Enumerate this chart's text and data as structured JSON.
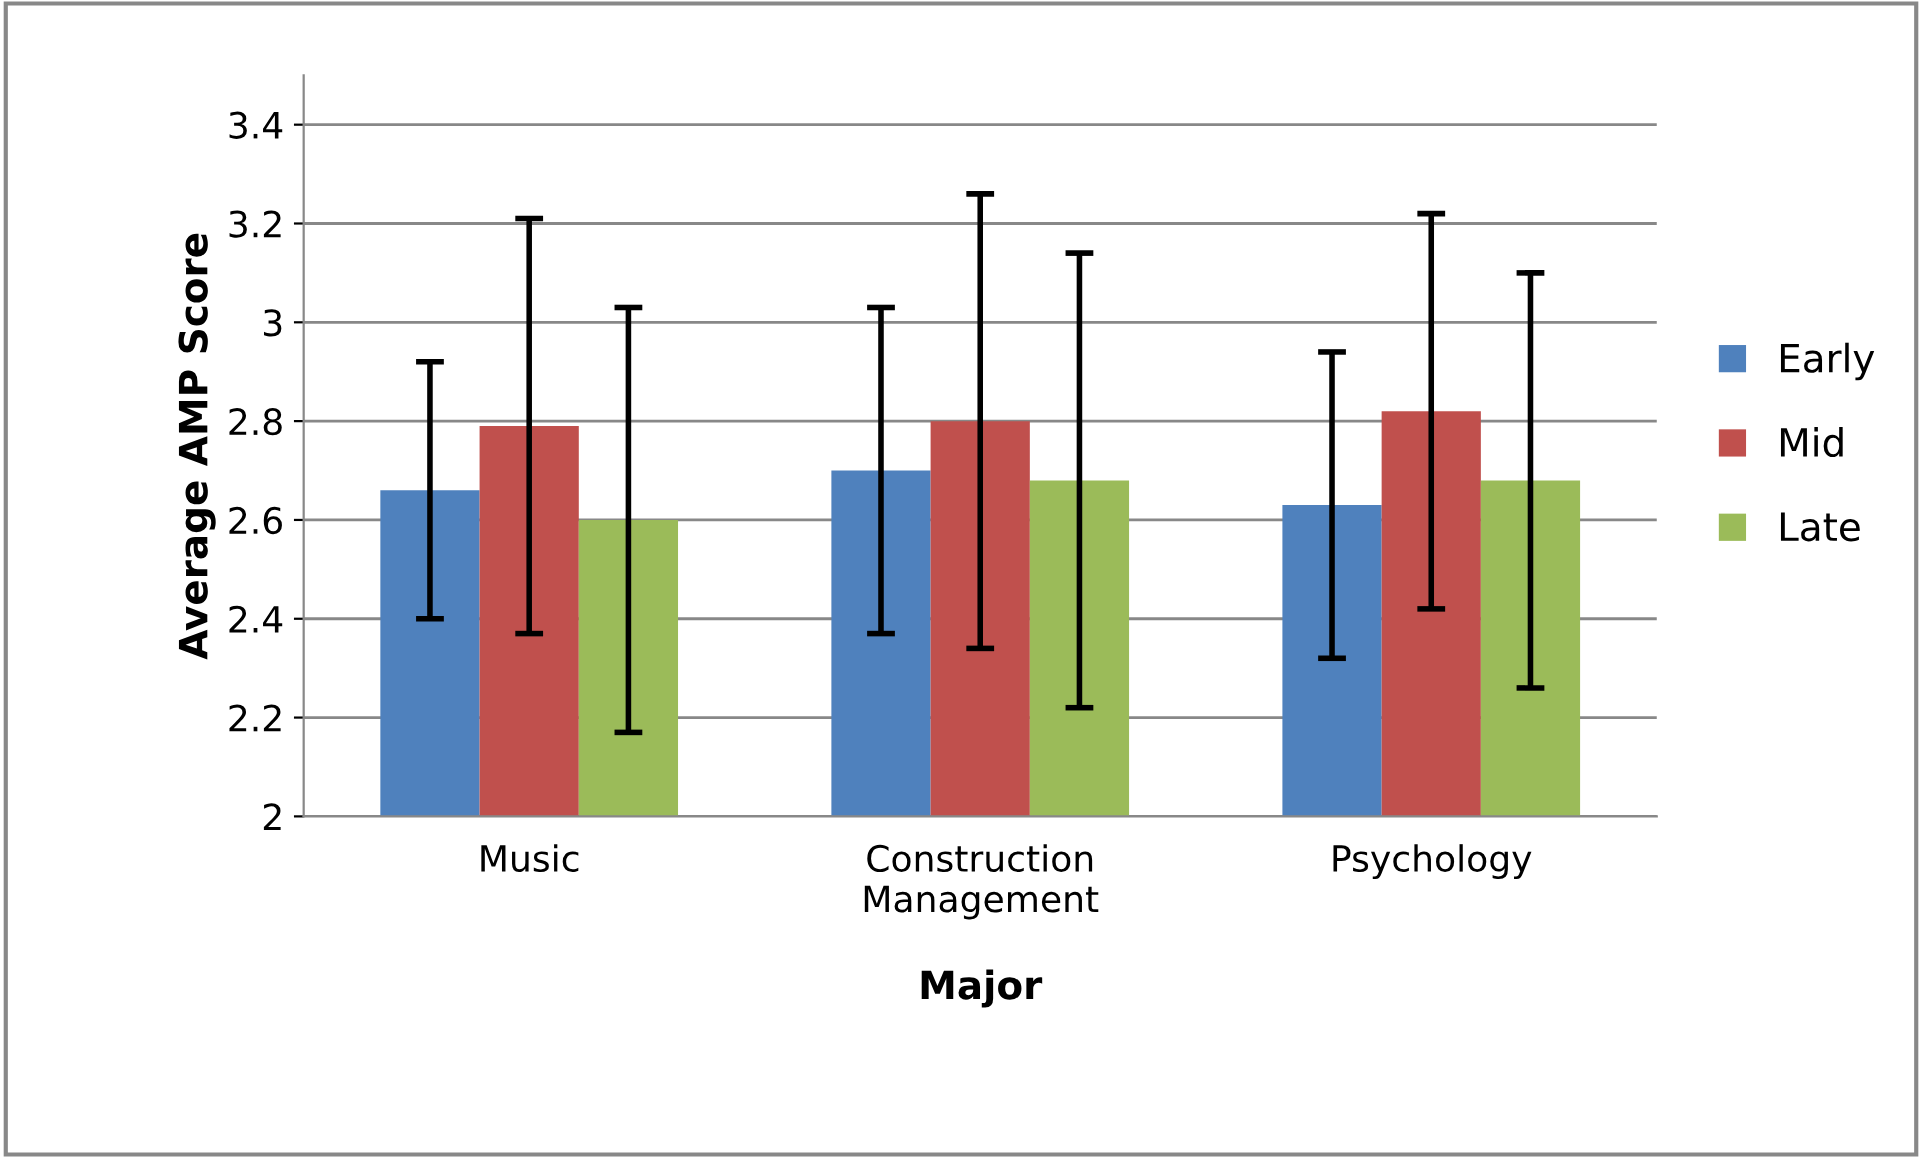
{
  "chart_data": {
    "type": "bar",
    "xlabel": "Major",
    "ylabel": "Average AMP Score",
    "categories": [
      "Music",
      "Construction\nManagement",
      "Psychology"
    ],
    "series": [
      {
        "name": "Early",
        "color": "#4f81bd",
        "values": [
          2.66,
          2.7,
          2.63
        ],
        "errors": [
          0.26,
          0.33,
          0.31
        ]
      },
      {
        "name": "Mid",
        "color": "#c0504d",
        "values": [
          2.79,
          2.8,
          2.82
        ],
        "errors": [
          0.42,
          0.46,
          0.4
        ]
      },
      {
        "name": "Late",
        "color": "#9bbb59",
        "values": [
          2.6,
          2.68,
          2.68
        ],
        "errors": [
          0.43,
          0.46,
          0.42
        ]
      }
    ],
    "ylim": [
      2,
      3.5
    ],
    "yticks": [
      2,
      2.2,
      2.4,
      2.6,
      2.8,
      3,
      3.2,
      3.4
    ],
    "grid": "y",
    "legend": "right"
  }
}
